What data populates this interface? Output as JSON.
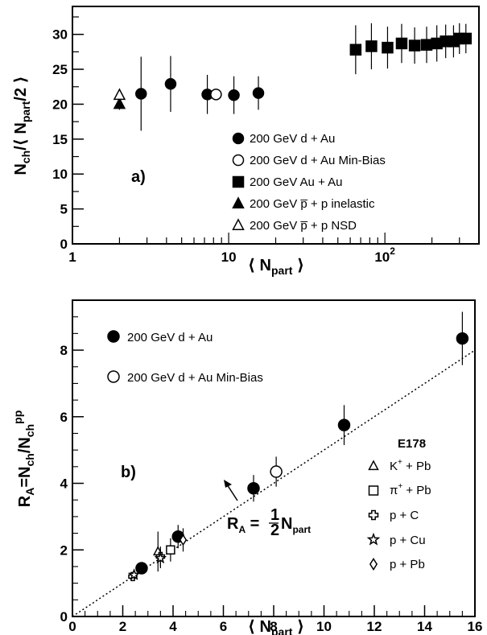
{
  "chart_data": [
    {
      "type": "scatter",
      "panel_label": "a)",
      "xscale": "log",
      "xlim": [
        1,
        400
      ],
      "ylim": [
        0,
        34
      ],
      "x_ticks": [
        {
          "value": 1,
          "label": "1"
        },
        {
          "value": 10,
          "label": "10"
        },
        {
          "value": 100,
          "label": "10",
          "exp": "2"
        }
      ],
      "y_ticks": [
        0,
        5,
        10,
        15,
        20,
        25,
        30
      ],
      "xlabel": "⟨ N_part ⟩",
      "ylabel": "N_ch/⟨ N_part/2 ⟩",
      "legend_position": "center-right",
      "series": [
        {
          "name": "200 GeV d + Au",
          "marker": "filled-circle",
          "points": [
            [
              2.75,
              21.5,
              5.3
            ],
            [
              4.25,
              22.9,
              4.0
            ],
            [
              7.3,
              21.4,
              2.8
            ],
            [
              10.8,
              21.3,
              2.7
            ],
            [
              15.5,
              21.6,
              2.4
            ]
          ]
        },
        {
          "name": "200 GeV d + Au  Min-Bias",
          "marker": "open-circle",
          "points": [
            [
              8.3,
              21.4,
              0
            ]
          ]
        },
        {
          "name": "200 GeV Au + Au",
          "marker": "filled-square",
          "points": [
            [
              65,
              27.8,
              3.5
            ],
            [
              82,
              28.3,
              3.3
            ],
            [
              104,
              28.1,
              3.0
            ],
            [
              128,
              28.7,
              2.8
            ],
            [
              155,
              28.4,
              2.6
            ],
            [
              185,
              28.5,
              2.6
            ],
            [
              215,
              28.7,
              2.6
            ],
            [
              245,
              29.0,
              2.4
            ],
            [
              275,
              29.0,
              2.3
            ],
            [
              300,
              29.4,
              2.2
            ],
            [
              330,
              29.4,
              2.1
            ]
          ]
        },
        {
          "name": "200 GeV p̅ + p inelastic",
          "marker": "filled-triangle",
          "points": [
            [
              2,
              20.0,
              0.8
            ]
          ]
        },
        {
          "name": "200 GeV p̅ + p NSD",
          "marker": "open-triangle",
          "points": [
            [
              2,
              21.3,
              0.8
            ]
          ]
        }
      ]
    },
    {
      "type": "scatter",
      "panel_label": "b)",
      "xlim": [
        0,
        16
      ],
      "ylim": [
        0,
        9.5
      ],
      "x_ticks": [
        0,
        2,
        4,
        6,
        8,
        10,
        12,
        14,
        16
      ],
      "y_ticks": [
        0,
        2,
        4,
        6,
        8
      ],
      "xlabel": "⟨ N_part ⟩",
      "ylabel": "R_A=N_ch/N_ch^pp",
      "annotation": "R_A = 1/2 N_part",
      "reference_line": {
        "slope": 0.5,
        "intercept": 0,
        "style": "dotted"
      },
      "experiment_label": "E178",
      "series": [
        {
          "name": "200 GeV d + Au",
          "marker": "filled-circle",
          "points": [
            [
              2.75,
              1.45,
              0.15
            ],
            [
              4.2,
              2.4,
              0.35
            ],
            [
              7.2,
              3.85,
              0.4
            ],
            [
              10.8,
              5.75,
              0.6
            ],
            [
              15.5,
              8.35,
              0.8
            ]
          ]
        },
        {
          "name": "200 GeV d + Au  Min-Bias",
          "marker": "open-circle",
          "points": [
            [
              8.1,
              4.35,
              0.45
            ]
          ]
        },
        {
          "name": "K⁺ + Pb",
          "marker": "open-triangle",
          "points": [
            [
              3.4,
              1.95,
              0.6
            ]
          ]
        },
        {
          "name": "π⁺ + Pb",
          "marker": "open-square",
          "points": [
            [
              3.9,
              2.0,
              0.35
            ]
          ]
        },
        {
          "name": "p + C",
          "marker": "open-cross",
          "points": [
            [
              2.4,
              1.2,
              0.12
            ],
            [
              3.5,
              1.8,
              0.3
            ]
          ]
        },
        {
          "name": "p + Cu",
          "marker": "open-star",
          "points": [
            [
              2.45,
              1.25,
              0.12
            ],
            [
              3.5,
              1.75,
              0.3
            ]
          ]
        },
        {
          "name": "p + Pb",
          "marker": "open-diamond",
          "points": [
            [
              4.4,
              2.3,
              0.35
            ]
          ]
        }
      ]
    }
  ]
}
